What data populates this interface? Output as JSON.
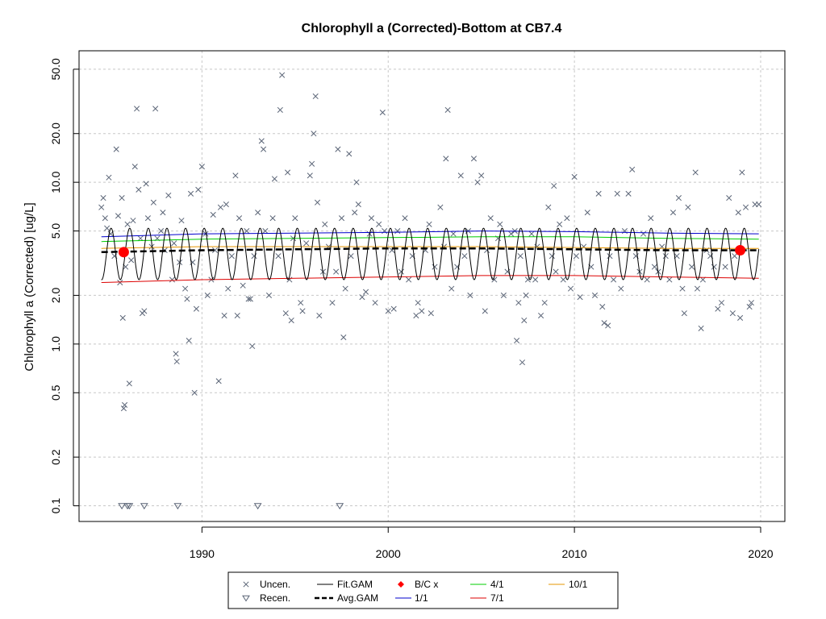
{
  "chart_data": {
    "type": "scatter",
    "title": "Chlorophyll a (Corrected)-Bottom at CB7.4",
    "xlabel": "",
    "ylabel": "Chlorophyll a (Corrected) [ug/L]",
    "y_scale": "log",
    "xlim": [
      1983.4,
      2021.3
    ],
    "ylim": [
      0.08,
      65
    ],
    "x_ticks": [
      1990,
      2000,
      2010,
      2020
    ],
    "x_tick_labels": [
      "1990",
      "2000",
      "2010",
      "2020"
    ],
    "y_ticks": [
      0.1,
      0.2,
      0.5,
      1.0,
      2.0,
      5.0,
      10.0,
      20.0,
      50.0
    ],
    "y_tick_labels": [
      "0.1",
      "0.2",
      "0.5",
      "1.0",
      "2.0",
      "5.0",
      "10.0",
      "20.0",
      "50.0"
    ],
    "grid": true,
    "legend_position": "bottom",
    "uncensored": {
      "name": "Uncen.",
      "color": "#5a6476",
      "points": [
        [
          1984.6,
          7.0
        ],
        [
          1984.7,
          8.0
        ],
        [
          1984.8,
          6.0
        ],
        [
          1984.9,
          5.2
        ],
        [
          1985.0,
          10.7
        ],
        [
          1985.1,
          4.8
        ],
        [
          1985.3,
          3.5
        ],
        [
          1985.4,
          16.0
        ],
        [
          1985.5,
          6.2
        ],
        [
          1985.6,
          2.4
        ],
        [
          1985.7,
          8.0
        ],
        [
          1985.75,
          1.45
        ],
        [
          1985.8,
          0.4
        ],
        [
          1985.85,
          0.42
        ],
        [
          1985.9,
          3.0
        ],
        [
          1986.0,
          5.5
        ],
        [
          1986.1,
          0.57
        ],
        [
          1986.2,
          3.3
        ],
        [
          1986.3,
          5.8
        ],
        [
          1986.4,
          12.5
        ],
        [
          1986.5,
          28.5
        ],
        [
          1986.6,
          9.0
        ],
        [
          1986.7,
          4.5
        ],
        [
          1986.8,
          1.55
        ],
        [
          1986.9,
          1.6
        ],
        [
          1987.0,
          9.8
        ],
        [
          1987.1,
          6.0
        ],
        [
          1987.3,
          4.0
        ],
        [
          1987.4,
          7.5
        ],
        [
          1987.5,
          28.5
        ],
        [
          1987.6,
          4.5
        ],
        [
          1987.8,
          5.0
        ],
        [
          1987.9,
          6.5
        ],
        [
          1988.0,
          3.8
        ],
        [
          1988.2,
          8.3
        ],
        [
          1988.4,
          2.5
        ],
        [
          1988.5,
          4.2
        ],
        [
          1988.6,
          0.87
        ],
        [
          1988.65,
          0.78
        ],
        [
          1988.8,
          3.2
        ],
        [
          1988.9,
          5.8
        ],
        [
          1989.1,
          2.2
        ],
        [
          1989.2,
          1.9
        ],
        [
          1989.3,
          1.05
        ],
        [
          1989.4,
          8.5
        ],
        [
          1989.5,
          3.2
        ],
        [
          1989.6,
          0.5
        ],
        [
          1989.7,
          1.65
        ],
        [
          1989.8,
          9.0
        ],
        [
          1990.0,
          12.5
        ],
        [
          1990.2,
          4.8
        ],
        [
          1990.3,
          2.0
        ],
        [
          1990.5,
          2.5
        ],
        [
          1990.6,
          6.3
        ],
        [
          1990.7,
          3.8
        ],
        [
          1990.9,
          0.59
        ],
        [
          1991.0,
          7.0
        ],
        [
          1991.2,
          1.5
        ],
        [
          1991.3,
          7.3
        ],
        [
          1991.4,
          2.2
        ],
        [
          1991.6,
          3.5
        ],
        [
          1991.8,
          11.0
        ],
        [
          1991.9,
          1.5
        ],
        [
          1992.0,
          6.0
        ],
        [
          1992.2,
          2.3
        ],
        [
          1992.4,
          5.0
        ],
        [
          1992.5,
          1.9
        ],
        [
          1992.6,
          1.9
        ],
        [
          1992.7,
          0.97
        ],
        [
          1992.8,
          3.5
        ],
        [
          1993.0,
          6.5
        ],
        [
          1993.2,
          18.0
        ],
        [
          1993.3,
          16.0
        ],
        [
          1993.4,
          5.0
        ],
        [
          1993.6,
          2.0
        ],
        [
          1993.8,
          6.0
        ],
        [
          1993.9,
          10.5
        ],
        [
          1994.1,
          3.5
        ],
        [
          1994.2,
          28.0
        ],
        [
          1994.3,
          46.0
        ],
        [
          1994.5,
          1.55
        ],
        [
          1994.6,
          11.5
        ],
        [
          1994.7,
          2.5
        ],
        [
          1994.8,
          1.4
        ],
        [
          1994.9,
          4.5
        ],
        [
          1995.0,
          6.0
        ],
        [
          1995.3,
          1.8
        ],
        [
          1995.4,
          1.6
        ],
        [
          1995.6,
          4.2
        ],
        [
          1995.8,
          11.0
        ],
        [
          1995.9,
          13.0
        ],
        [
          1996.0,
          20.0
        ],
        [
          1996.1,
          34.0
        ],
        [
          1996.2,
          7.5
        ],
        [
          1996.3,
          1.5
        ],
        [
          1996.5,
          2.8
        ],
        [
          1996.6,
          5.5
        ],
        [
          1996.8,
          4.0
        ],
        [
          1997.0,
          1.8
        ],
        [
          1997.2,
          2.8
        ],
        [
          1997.3,
          16.0
        ],
        [
          1997.5,
          6.0
        ],
        [
          1997.6,
          1.1
        ],
        [
          1997.7,
          2.2
        ],
        [
          1997.9,
          15.0
        ],
        [
          1998.0,
          3.5
        ],
        [
          1998.2,
          6.5
        ],
        [
          1998.3,
          10.0
        ],
        [
          1998.4,
          7.3
        ],
        [
          1998.6,
          1.95
        ],
        [
          1998.8,
          2.1
        ],
        [
          1999.0,
          4.8
        ],
        [
          1999.1,
          6.0
        ],
        [
          1999.3,
          1.8
        ],
        [
          1999.5,
          5.5
        ],
        [
          1999.7,
          27.0
        ],
        [
          1999.8,
          5.0
        ],
        [
          2000.0,
          1.6
        ],
        [
          2000.2,
          3.8
        ],
        [
          2000.3,
          1.65
        ],
        [
          2000.5,
          5.0
        ],
        [
          2000.7,
          2.8
        ],
        [
          2000.9,
          6.0
        ],
        [
          2001.1,
          2.5
        ],
        [
          2001.3,
          3.5
        ],
        [
          2001.5,
          1.5
        ],
        [
          2001.6,
          1.8
        ],
        [
          2001.8,
          1.6
        ],
        [
          2002.0,
          3.8
        ],
        [
          2002.2,
          5.5
        ],
        [
          2002.3,
          1.55
        ],
        [
          2002.5,
          3.0
        ],
        [
          2002.8,
          7.0
        ],
        [
          2003.0,
          4.0
        ],
        [
          2003.1,
          14.0
        ],
        [
          2003.2,
          28.0
        ],
        [
          2003.4,
          2.2
        ],
        [
          2003.5,
          4.8
        ],
        [
          2003.7,
          3.0
        ],
        [
          2003.9,
          11.0
        ],
        [
          2004.1,
          3.5
        ],
        [
          2004.3,
          5.0
        ],
        [
          2004.4,
          2.0
        ],
        [
          2004.6,
          14.0
        ],
        [
          2004.8,
          10.0
        ],
        [
          2005.0,
          11.0
        ],
        [
          2005.2,
          1.6
        ],
        [
          2005.3,
          3.8
        ],
        [
          2005.5,
          6.0
        ],
        [
          2005.7,
          2.5
        ],
        [
          2005.9,
          4.5
        ],
        [
          2006.0,
          5.5
        ],
        [
          2006.2,
          2.0
        ],
        [
          2006.4,
          2.8
        ],
        [
          2006.6,
          4.8
        ],
        [
          2006.8,
          5.0
        ],
        [
          2006.9,
          1.05
        ],
        [
          2007.0,
          1.8
        ],
        [
          2007.1,
          3.5
        ],
        [
          2007.2,
          0.77
        ],
        [
          2007.3,
          1.4
        ],
        [
          2007.4,
          2.0
        ],
        [
          2007.5,
          2.5
        ],
        [
          2007.7,
          4.8
        ],
        [
          2007.9,
          2.5
        ],
        [
          2008.0,
          4.0
        ],
        [
          2008.2,
          1.5
        ],
        [
          2008.4,
          1.8
        ],
        [
          2008.6,
          7.0
        ],
        [
          2008.8,
          3.5
        ],
        [
          2008.9,
          9.5
        ],
        [
          2009.0,
          2.8
        ],
        [
          2009.2,
          5.5
        ],
        [
          2009.4,
          2.5
        ],
        [
          2009.6,
          6.0
        ],
        [
          2009.8,
          2.2
        ],
        [
          2010.0,
          10.8
        ],
        [
          2010.1,
          3.5
        ],
        [
          2010.3,
          1.95
        ],
        [
          2010.5,
          4.0
        ],
        [
          2010.7,
          6.5
        ],
        [
          2010.9,
          3.0
        ],
        [
          2011.1,
          2.0
        ],
        [
          2011.3,
          8.5
        ],
        [
          2011.5,
          1.7
        ],
        [
          2011.6,
          1.35
        ],
        [
          2011.8,
          1.3
        ],
        [
          2011.9,
          3.5
        ],
        [
          2012.1,
          2.5
        ],
        [
          2012.3,
          8.5
        ],
        [
          2012.5,
          2.2
        ],
        [
          2012.7,
          5.0
        ],
        [
          2012.9,
          8.5
        ],
        [
          2013.1,
          12.0
        ],
        [
          2013.3,
          3.5
        ],
        [
          2013.5,
          2.8
        ],
        [
          2013.7,
          4.8
        ],
        [
          2013.9,
          2.5
        ],
        [
          2014.1,
          6.0
        ],
        [
          2014.3,
          3.0
        ],
        [
          2014.5,
          2.8
        ],
        [
          2014.7,
          4.0
        ],
        [
          2014.9,
          3.5
        ],
        [
          2015.1,
          2.5
        ],
        [
          2015.3,
          6.5
        ],
        [
          2015.5,
          3.5
        ],
        [
          2015.6,
          8.0
        ],
        [
          2015.8,
          2.2
        ],
        [
          2015.9,
          1.55
        ],
        [
          2016.1,
          7.0
        ],
        [
          2016.3,
          3.0
        ],
        [
          2016.5,
          11.5
        ],
        [
          2016.6,
          2.2
        ],
        [
          2016.8,
          1.25
        ],
        [
          2016.9,
          2.5
        ],
        [
          2017.1,
          3.8
        ],
        [
          2017.3,
          3.5
        ],
        [
          2017.5,
          3.0
        ],
        [
          2017.7,
          1.65
        ],
        [
          2017.9,
          1.8
        ],
        [
          2018.1,
          3.0
        ],
        [
          2018.3,
          8.0
        ],
        [
          2018.5,
          1.55
        ],
        [
          2018.6,
          3.5
        ],
        [
          2018.8,
          6.5
        ],
        [
          2018.9,
          1.45
        ],
        [
          2019.0,
          11.5
        ],
        [
          2019.2,
          7.0
        ],
        [
          2019.4,
          1.7
        ],
        [
          2019.5,
          1.8
        ],
        [
          2019.7,
          7.3
        ],
        [
          2019.9,
          7.3
        ]
      ]
    },
    "recensored": {
      "name": "Recen.",
      "color": "#5a6476",
      "points": [
        [
          1985.7,
          0.1
        ],
        [
          1986.0,
          0.1
        ],
        [
          1986.1,
          0.1
        ],
        [
          1986.9,
          0.1
        ],
        [
          1988.7,
          0.1
        ],
        [
          1993.0,
          0.1
        ],
        [
          1997.4,
          0.1
        ]
      ]
    },
    "fit_gam": {
      "name": "Fit.GAM",
      "color": "#000000",
      "x_start": 1984.6,
      "x_end": 2019.9,
      "seasonal_max": 5.2,
      "seasonal_min": 2.5
    },
    "avg_gam": {
      "name": "Avg.GAM",
      "color": "#000000",
      "x": [
        1984.6,
        1990,
        1995,
        2000,
        2005,
        2010,
        2015,
        2019.9
      ],
      "y": [
        3.7,
        3.8,
        3.85,
        3.9,
        3.9,
        3.85,
        3.8,
        3.8
      ]
    },
    "bc_points": {
      "name": "B/C x",
      "color": "#ff0000",
      "points": [
        [
          1985.8,
          3.7
        ],
        [
          2018.9,
          3.8
        ]
      ]
    },
    "date_lines": [
      {
        "name": "1/1",
        "color": "#0000cc",
        "x": [
          1984.6,
          1990,
          2000,
          2005,
          2010,
          2015,
          2019.9
        ],
        "y": [
          4.6,
          4.8,
          4.9,
          5.0,
          4.95,
          4.85,
          4.8
        ]
      },
      {
        "name": "4/1",
        "color": "#00cc00",
        "x": [
          1984.6,
          1990,
          2000,
          2005,
          2010,
          2015,
          2019.9
        ],
        "y": [
          4.3,
          4.45,
          4.55,
          4.6,
          4.6,
          4.5,
          4.45
        ]
      },
      {
        "name": "7/1",
        "color": "#dd0000",
        "x": [
          1984.6,
          1990,
          2000,
          2005,
          2010,
          2015,
          2019.9
        ],
        "y": [
          2.4,
          2.5,
          2.6,
          2.65,
          2.65,
          2.6,
          2.55
        ]
      },
      {
        "name": "10/1",
        "color": "#e69500",
        "x": [
          1984.6,
          1990,
          2000,
          2005,
          2010,
          2015,
          2019.9
        ],
        "y": [
          3.9,
          4.0,
          4.0,
          4.0,
          3.95,
          3.9,
          3.9
        ]
      }
    ]
  }
}
